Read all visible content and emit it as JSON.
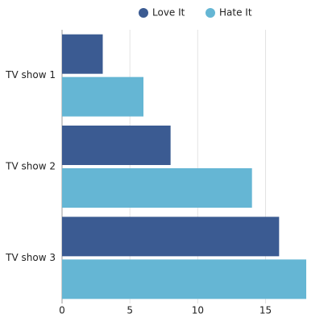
{
  "chart_data": {
    "type": "bar",
    "orientation": "horizontal",
    "categories": [
      "TV show 1",
      "TV show 2",
      "TV show 3"
    ],
    "series": [
      {
        "name": "Love It",
        "color": "#3b5b92",
        "values": [
          3,
          8,
          16
        ]
      },
      {
        "name": "Hate It",
        "color": "#65b6d4",
        "values": [
          6,
          14,
          18
        ]
      }
    ],
    "xlim": [
      0,
      18
    ],
    "xticks": [
      0,
      5,
      10,
      15
    ],
    "grid": true,
    "legend": "top"
  }
}
